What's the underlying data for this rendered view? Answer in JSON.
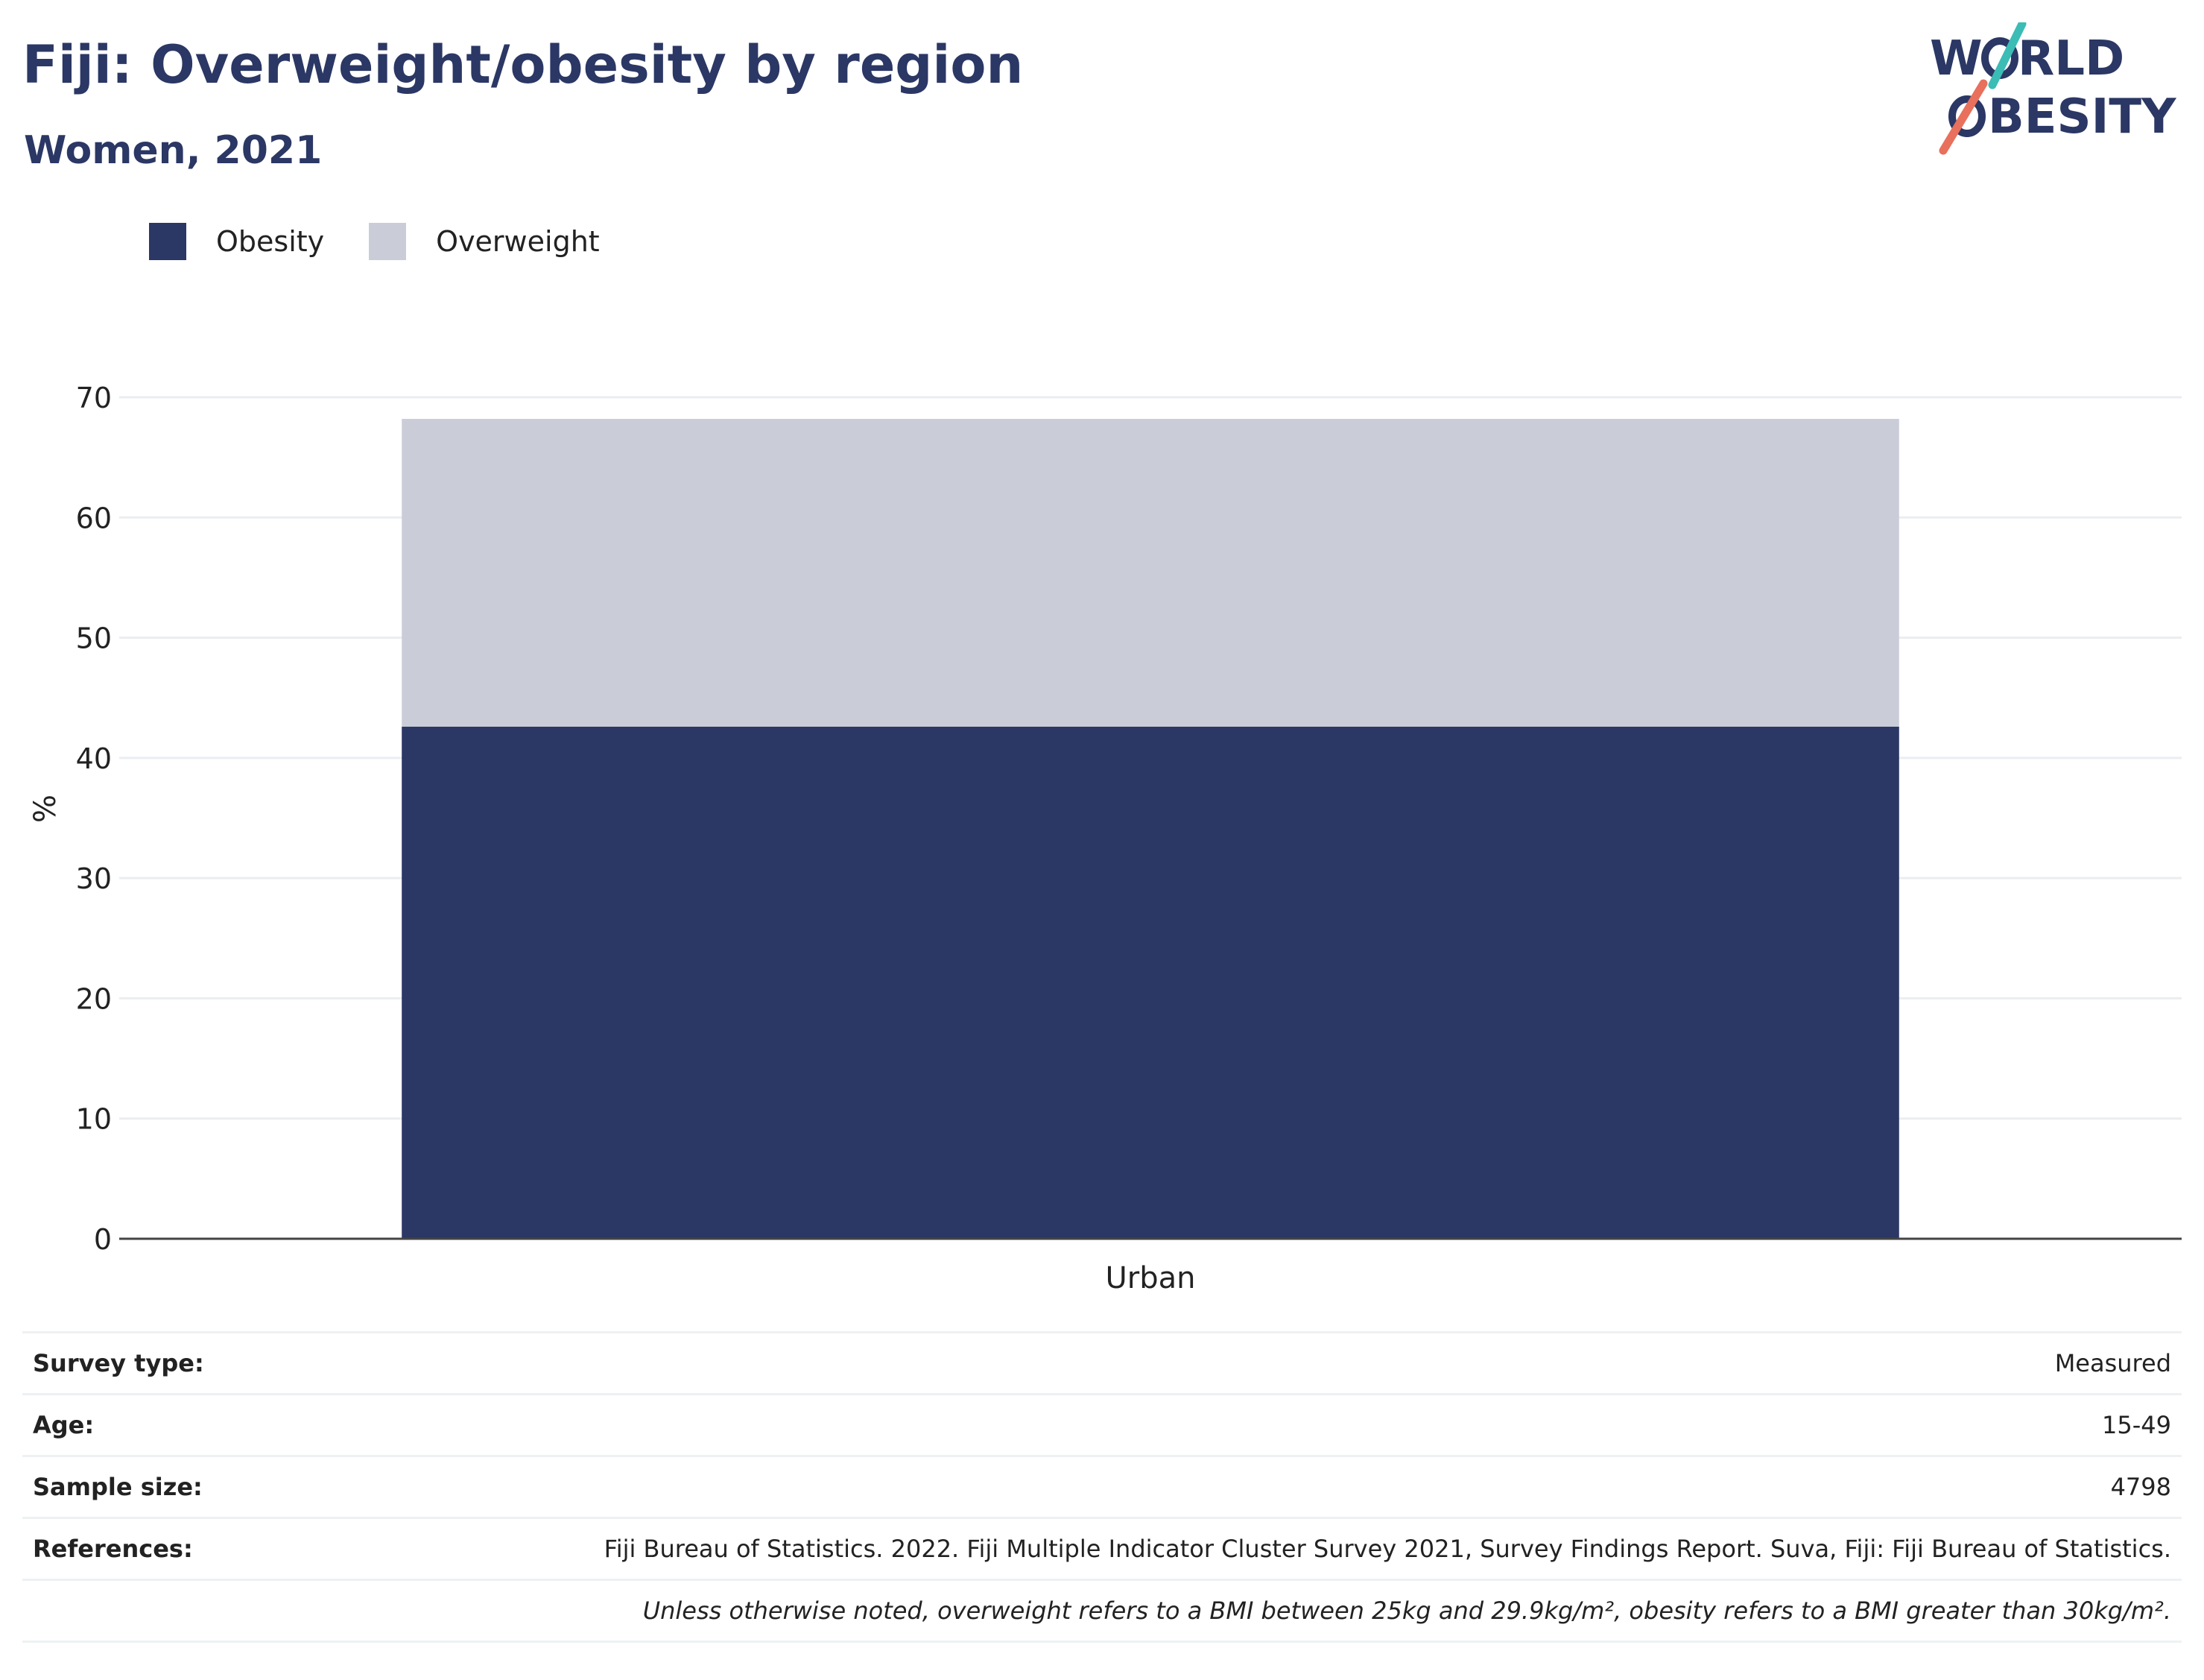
{
  "header": {
    "title": "Fiji: Overweight/obesity by region",
    "subtitle": "Women, 2021"
  },
  "logo": {
    "line1_start": "W",
    "line1_end": "RLD",
    "line2_end": "BESITY",
    "accent_teal": "#3bbcb5",
    "accent_coral": "#e8705c",
    "color": "#2b3764"
  },
  "legend": {
    "items": [
      {
        "label": "Obesity",
        "color": "#2b3764"
      },
      {
        "label": "Overweight",
        "color": "#cacdd8"
      }
    ]
  },
  "chart_data": {
    "type": "bar",
    "stacked": true,
    "categories": [
      "Urban"
    ],
    "series": [
      {
        "name": "Obesity",
        "values": [
          42.6
        ],
        "color": "#2b3764"
      },
      {
        "name": "Overweight",
        "values": [
          25.6
        ],
        "color": "#cacdd8"
      }
    ],
    "ylabel": "%",
    "ylim": [
      0,
      70
    ],
    "yticks": [
      0,
      10,
      20,
      30,
      40,
      50,
      60,
      70
    ],
    "grid": true,
    "legend_position": "top-left"
  },
  "info": {
    "rows": [
      {
        "label": "Survey type:",
        "value": "Measured"
      },
      {
        "label": "Age:",
        "value": "15-49"
      },
      {
        "label": "Sample size:",
        "value": "4798"
      },
      {
        "label": "References:",
        "value": "Fiji Bureau of Statistics. 2022. Fiji Multiple Indicator Cluster Survey 2021, Survey Findings Report. Suva, Fiji: Fiji Bureau of Statistics."
      }
    ],
    "note": "Unless otherwise noted, overweight refers to a BMI between 25kg and 29.9kg/m², obesity refers to a BMI greater than 30kg/m²."
  }
}
